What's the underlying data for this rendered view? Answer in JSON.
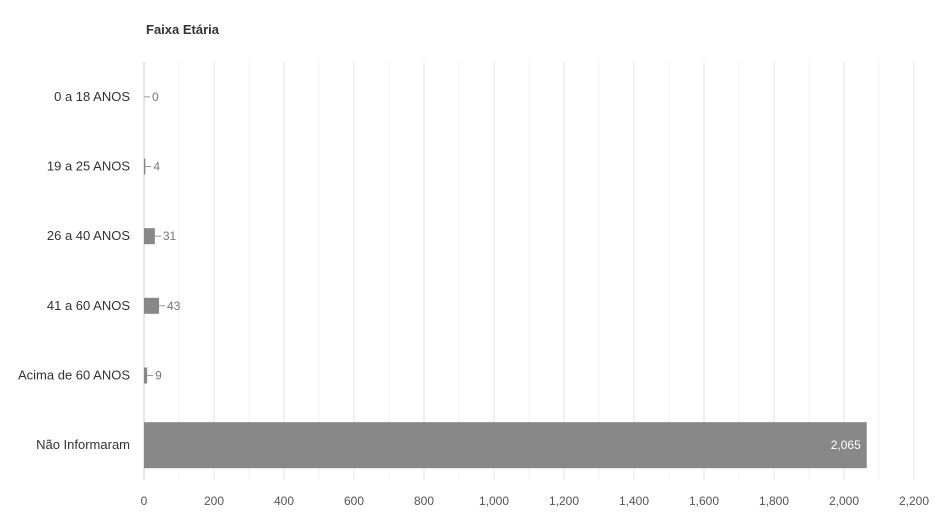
{
  "chart_data": {
    "type": "bar",
    "orientation": "horizontal",
    "title": "Faixa Etária",
    "categories": [
      "0 a 18 ANOS",
      "19 a 25 ANOS",
      "26 a 40 ANOS",
      "41 a 60 ANOS",
      "Acima de 60 ANOS",
      "Não Informaram"
    ],
    "values": [
      0,
      4,
      31,
      43,
      9,
      2065
    ],
    "value_labels": [
      "0",
      "4",
      "31",
      "43",
      "9",
      "2,065"
    ],
    "xlim": [
      0,
      2200
    ],
    "x_ticks": [
      0,
      200,
      400,
      600,
      800,
      1000,
      1200,
      1400,
      1600,
      1800,
      2000,
      2200
    ],
    "x_tick_labels": [
      "0",
      "200",
      "400",
      "600",
      "800",
      "1,000",
      "1,200",
      "1,400",
      "1,600",
      "1,800",
      "2,000",
      "2,200"
    ],
    "grid": true,
    "legend": "none",
    "bar_color": "#888888",
    "grid_color": "#e3e3e3"
  }
}
